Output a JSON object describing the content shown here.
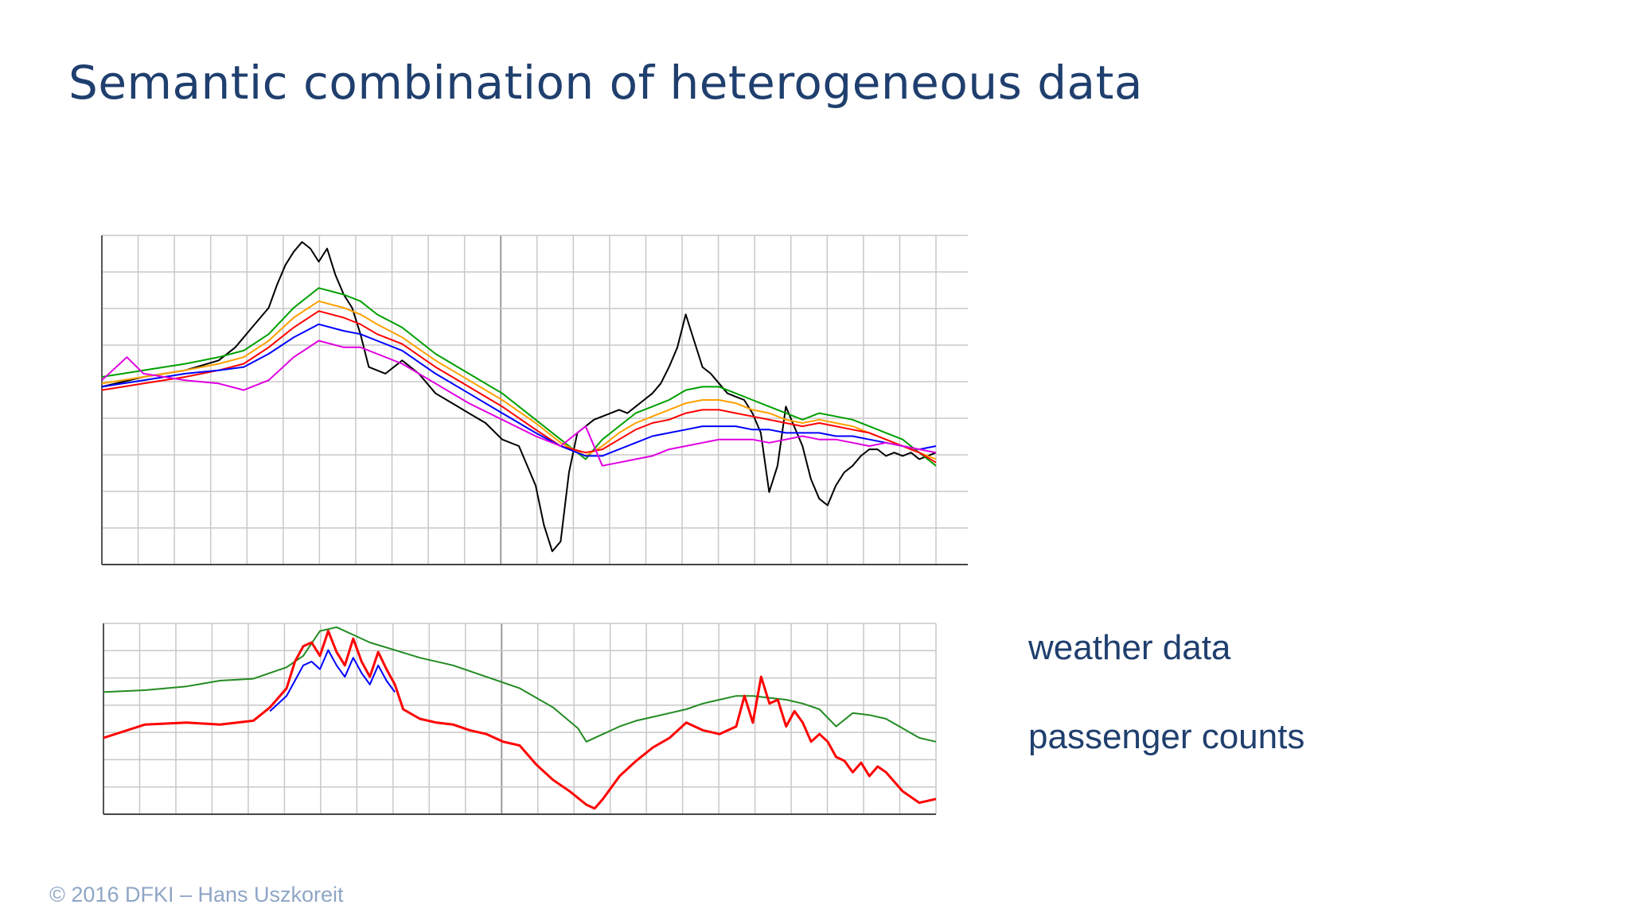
{
  "slide": {
    "title": "Semantic combination of heterogeneous data",
    "labels": {
      "weather": "weather data",
      "passenger": "passenger counts"
    },
    "footer": "© 2016 DFKI  –  Hans Uszkoreit"
  },
  "chart_data": [
    {
      "type": "line",
      "xlim": [
        0,
        100
      ],
      "ylim": [
        0,
        100
      ],
      "grid": true,
      "series": [
        {
          "color": "#000000",
          "x": [
            0,
            5,
            10,
            14,
            16,
            18,
            20,
            21,
            22,
            23,
            24,
            25,
            26,
            27,
            28,
            29,
            30,
            31,
            32,
            34,
            36,
            38,
            40,
            42,
            44,
            46,
            48,
            50,
            52,
            53,
            54,
            55,
            56,
            57,
            58,
            59,
            60,
            61,
            62,
            63,
            64,
            65,
            66,
            67,
            68,
            69,
            70,
            71,
            72,
            73,
            74,
            75,
            76,
            77,
            78,
            79,
            80,
            81,
            82,
            83,
            84,
            85,
            86,
            87,
            88,
            89,
            90,
            91,
            92,
            93,
            94,
            95,
            96,
            97,
            98,
            99,
            100
          ],
          "y": [
            54,
            57,
            59,
            62,
            66,
            72,
            78,
            85,
            91,
            95,
            98,
            96,
            92,
            96,
            88,
            82,
            78,
            70,
            60,
            58,
            62,
            58,
            52,
            49,
            46,
            43,
            38,
            36,
            24,
            12,
            4,
            7,
            28,
            40,
            42,
            44,
            45,
            46,
            47,
            46,
            48,
            50,
            52,
            55,
            60,
            66,
            76,
            68,
            60,
            58,
            55,
            52,
            51,
            50,
            46,
            40,
            22,
            30,
            48,
            42,
            36,
            26,
            20,
            18,
            24,
            28,
            30,
            33,
            35,
            35,
            33,
            34,
            33,
            34,
            32,
            33,
            34
          ]
        },
        {
          "color": "#00a000",
          "x": [
            0,
            5,
            10,
            14,
            17,
            20,
            23,
            26,
            29,
            31,
            33,
            36,
            40,
            44,
            48,
            52,
            55,
            58,
            60,
            62,
            64,
            66,
            68,
            70,
            72,
            74,
            76,
            78,
            80,
            82,
            84,
            86,
            88,
            90,
            92,
            94,
            96,
            98,
            100
          ],
          "y": [
            57,
            59,
            61,
            63,
            65,
            70,
            78,
            84,
            82,
            80,
            76,
            72,
            64,
            58,
            52,
            44,
            38,
            32,
            38,
            42,
            46,
            48,
            50,
            53,
            54,
            54,
            52,
            50,
            48,
            46,
            44,
            46,
            45,
            44,
            42,
            40,
            38,
            34,
            30
          ]
        },
        {
          "color": "#ffa000",
          "x": [
            0,
            5,
            10,
            14,
            17,
            20,
            23,
            26,
            29,
            31,
            33,
            36,
            40,
            44,
            48,
            52,
            55,
            58,
            60,
            62,
            64,
            66,
            68,
            70,
            72,
            74,
            76,
            78,
            80,
            82,
            84,
            86,
            88,
            90,
            92,
            94,
            96,
            98,
            100
          ],
          "y": [
            55,
            57,
            59,
            61,
            63,
            68,
            75,
            80,
            78,
            76,
            73,
            69,
            62,
            56,
            50,
            43,
            37,
            33,
            36,
            40,
            43,
            45,
            47,
            49,
            50,
            50,
            49,
            47,
            46,
            44,
            43,
            44,
            43,
            42,
            40,
            38,
            36,
            34,
            32
          ]
        },
        {
          "color": "#ff0000",
          "x": [
            0,
            5,
            10,
            14,
            17,
            20,
            23,
            26,
            29,
            31,
            33,
            36,
            40,
            44,
            48,
            52,
            55,
            58,
            60,
            62,
            64,
            66,
            68,
            70,
            72,
            74,
            76,
            78,
            80,
            82,
            84,
            86,
            88,
            90,
            92,
            94,
            96,
            98,
            100
          ],
          "y": [
            53,
            55,
            57,
            59,
            61,
            66,
            72,
            77,
            75,
            73,
            70,
            67,
            60,
            54,
            48,
            41,
            36,
            34,
            35,
            38,
            41,
            43,
            44,
            46,
            47,
            47,
            46,
            45,
            44,
            43,
            42,
            43,
            42,
            41,
            40,
            38,
            36,
            34,
            31
          ]
        },
        {
          "color": "#0000ff",
          "x": [
            0,
            5,
            10,
            14,
            17,
            20,
            23,
            26,
            29,
            31,
            33,
            36,
            40,
            44,
            48,
            52,
            55,
            58,
            60,
            62,
            64,
            66,
            68,
            70,
            72,
            74,
            76,
            78,
            80,
            82,
            84,
            86,
            88,
            90,
            92,
            94,
            96,
            98,
            100
          ],
          "y": [
            54,
            56,
            58,
            59,
            60,
            64,
            69,
            73,
            71,
            70,
            68,
            65,
            58,
            52,
            46,
            40,
            36,
            33,
            33,
            35,
            37,
            39,
            40,
            41,
            42,
            42,
            42,
            41,
            41,
            40,
            40,
            40,
            39,
            39,
            38,
            37,
            36,
            35,
            36
          ]
        },
        {
          "color": "#e000e0",
          "x": [
            0,
            3,
            5,
            10,
            14,
            17,
            20,
            23,
            26,
            29,
            31,
            33,
            36,
            40,
            44,
            48,
            52,
            55,
            58,
            60,
            62,
            64,
            66,
            68,
            70,
            72,
            74,
            76,
            78,
            80,
            82,
            84,
            86,
            88,
            90,
            92,
            94,
            96,
            98,
            100
          ],
          "y": [
            56,
            63,
            58,
            56,
            55,
            53,
            56,
            63,
            68,
            66,
            66,
            64,
            61,
            55,
            49,
            44,
            39,
            36,
            42,
            30,
            31,
            32,
            33,
            35,
            36,
            37,
            38,
            38,
            38,
            37,
            38,
            39,
            38,
            38,
            37,
            36,
            37,
            36,
            35,
            34
          ]
        }
      ]
    },
    {
      "type": "line",
      "xlim": [
        0,
        100
      ],
      "ylim": [
        0,
        100
      ],
      "grid": true,
      "series": [
        {
          "color": "#228b22",
          "x": [
            0,
            5,
            10,
            14,
            18,
            22,
            24,
            26,
            28,
            30,
            32,
            35,
            38,
            42,
            46,
            50,
            54,
            57,
            58,
            60,
            62,
            64,
            66,
            68,
            70,
            72,
            74,
            76,
            78,
            80,
            82,
            84,
            86,
            88,
            90,
            92,
            94,
            96,
            98,
            100
          ],
          "y": [
            64,
            65,
            67,
            70,
            71,
            77,
            83,
            96,
            98,
            94,
            90,
            86,
            82,
            78,
            72,
            66,
            56,
            45,
            38,
            42,
            46,
            49,
            51,
            53,
            55,
            58,
            60,
            62,
            62,
            61,
            60,
            58,
            55,
            46,
            53,
            52,
            50,
            45,
            40,
            38
          ]
        },
        {
          "color": "#ff0000",
          "width": 3,
          "x": [
            0,
            5,
            10,
            14,
            18,
            20,
            22,
            23,
            24,
            25,
            26,
            27,
            28,
            29,
            30,
            31,
            32,
            33,
            34,
            35,
            36,
            38,
            40,
            42,
            44,
            46,
            48,
            50,
            52,
            54,
            56,
            58,
            59,
            60,
            62,
            64,
            66,
            68,
            70,
            72,
            74,
            76,
            77,
            78,
            79,
            80,
            81,
            82,
            83,
            84,
            85,
            86,
            87,
            88,
            89,
            90,
            91,
            92,
            93,
            94,
            96,
            98,
            100
          ],
          "y": [
            40,
            47,
            48,
            47,
            49,
            56,
            66,
            80,
            88,
            90,
            83,
            96,
            85,
            78,
            92,
            80,
            72,
            85,
            76,
            68,
            55,
            50,
            48,
            47,
            44,
            42,
            38,
            36,
            26,
            18,
            12,
            5,
            3,
            8,
            20,
            28,
            35,
            40,
            48,
            44,
            42,
            46,
            62,
            48,
            72,
            58,
            60,
            46,
            54,
            48,
            38,
            42,
            38,
            30,
            28,
            22,
            27,
            20,
            25,
            22,
            12,
            6,
            8
          ]
        },
        {
          "color": "#0000ff",
          "x": [
            20,
            22,
            23,
            24,
            25,
            26,
            27,
            28,
            29,
            30,
            31,
            32,
            33,
            34,
            35
          ],
          "y": [
            54,
            62,
            70,
            78,
            80,
            76,
            86,
            78,
            72,
            82,
            74,
            68,
            78,
            70,
            64
          ]
        }
      ]
    }
  ]
}
